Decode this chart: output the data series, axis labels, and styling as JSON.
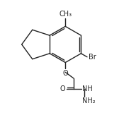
{
  "bg_color": "#ffffff",
  "line_color": "#222222",
  "line_width": 1.0,
  "font_size": 6.5,
  "fig_width": 1.68,
  "fig_height": 1.97,
  "dpi": 100,
  "xlim": [
    0,
    10
  ],
  "ylim": [
    0,
    11.7
  ]
}
